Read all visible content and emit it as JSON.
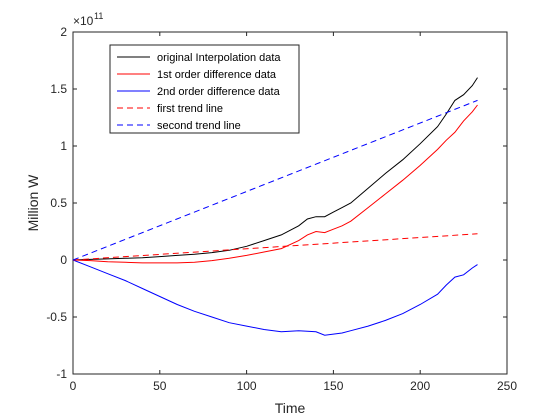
{
  "chart_data": {
    "type": "line",
    "xlabel": "Time",
    "ylabel": "Million W",
    "xlim": [
      0,
      250
    ],
    "ylim": [
      -1,
      2
    ],
    "y_exponent_base": "×10",
    "y_exponent_power": "11",
    "grid": false,
    "legend_position": "top-left",
    "x_ticks": [
      0,
      50,
      100,
      150,
      200,
      250
    ],
    "y_ticks": [
      -1,
      -0.5,
      0,
      0.5,
      1,
      1.5,
      2
    ],
    "x_tick_labels": [
      "0",
      "50",
      "100",
      "150",
      "200",
      "250"
    ],
    "y_tick_labels": [
      "-1",
      "-0.5",
      "0",
      "0.5",
      "1",
      "1.5",
      "2"
    ],
    "series": [
      {
        "name": "original Interpolation data",
        "color": "#000000",
        "dash": "solid",
        "x": [
          0,
          10,
          20,
          30,
          40,
          50,
          60,
          70,
          80,
          90,
          100,
          110,
          120,
          130,
          135,
          140,
          145,
          150,
          155,
          160,
          170,
          180,
          190,
          200,
          210,
          215,
          220,
          225,
          230,
          233
        ],
        "y": [
          0,
          0.005,
          0.01,
          0.015,
          0.02,
          0.03,
          0.04,
          0.05,
          0.065,
          0.085,
          0.12,
          0.17,
          0.22,
          0.3,
          0.36,
          0.38,
          0.38,
          0.42,
          0.46,
          0.5,
          0.63,
          0.76,
          0.88,
          1.02,
          1.17,
          1.28,
          1.4,
          1.45,
          1.53,
          1.6
        ]
      },
      {
        "name": "1st order difference data",
        "color": "#ff0000",
        "dash": "solid",
        "x": [
          0,
          10,
          20,
          30,
          40,
          50,
          60,
          70,
          80,
          90,
          100,
          110,
          120,
          130,
          135,
          140,
          145,
          150,
          155,
          160,
          170,
          180,
          190,
          200,
          210,
          215,
          220,
          225,
          230,
          233
        ],
        "y": [
          0,
          -0.005,
          -0.015,
          -0.02,
          -0.025,
          -0.025,
          -0.025,
          -0.02,
          -0.005,
          0.015,
          0.04,
          0.07,
          0.1,
          0.17,
          0.22,
          0.25,
          0.24,
          0.27,
          0.3,
          0.34,
          0.46,
          0.58,
          0.7,
          0.83,
          0.97,
          1.05,
          1.12,
          1.22,
          1.3,
          1.36
        ]
      },
      {
        "name": "2nd order difference data",
        "color": "#0000ff",
        "dash": "solid",
        "x": [
          0,
          10,
          20,
          30,
          40,
          50,
          60,
          70,
          80,
          90,
          100,
          110,
          120,
          130,
          140,
          145,
          150,
          155,
          160,
          170,
          180,
          190,
          200,
          210,
          215,
          220,
          225,
          230,
          233
        ],
        "y": [
          0,
          -0.06,
          -0.12,
          -0.18,
          -0.25,
          -0.32,
          -0.39,
          -0.45,
          -0.5,
          -0.55,
          -0.58,
          -0.61,
          -0.63,
          -0.62,
          -0.63,
          -0.66,
          -0.65,
          -0.64,
          -0.62,
          -0.58,
          -0.53,
          -0.47,
          -0.39,
          -0.3,
          -0.22,
          -0.15,
          -0.13,
          -0.07,
          -0.04
        ]
      },
      {
        "name": "first trend line",
        "color": "#ff0000",
        "dash": "dashed",
        "x": [
          0,
          233
        ],
        "y": [
          0,
          0.23
        ]
      },
      {
        "name": "second trend line",
        "color": "#0000ff",
        "dash": "dashed",
        "x": [
          0,
          233
        ],
        "y": [
          0,
          1.4
        ]
      }
    ]
  }
}
